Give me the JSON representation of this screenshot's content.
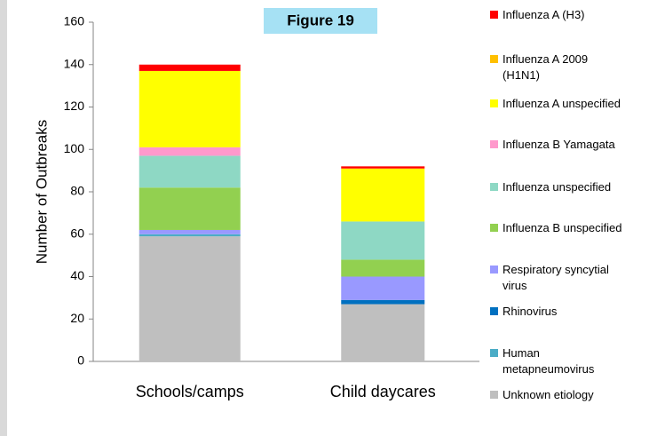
{
  "chart_data": {
    "type": "stacked_bar",
    "title": "Figure 19",
    "y_label": "Number of Outbreaks",
    "categories": [
      "Schools/camps",
      "Child daycares"
    ],
    "ylim": [
      0,
      160
    ],
    "yticks": [
      0,
      20,
      40,
      60,
      80,
      100,
      120,
      140,
      160
    ],
    "series": [
      {
        "name": "Unknown etiology",
        "color": "#bfbfbf",
        "values": [
          59,
          27
        ]
      },
      {
        "name": "Human metapneumovirus",
        "color": "#4bacc6",
        "values": [
          1,
          0
        ]
      },
      {
        "name": "Rhinovirus",
        "color": "#0070c0",
        "values": [
          0,
          2
        ]
      },
      {
        "name": "Respiratory syncytial virus",
        "color": "#9999ff",
        "values": [
          2,
          11
        ]
      },
      {
        "name": "Influenza B unspecified",
        "color": "#92d050",
        "values": [
          20,
          8
        ]
      },
      {
        "name": "Influenza unspecified",
        "color": "#8ed8c4",
        "values": [
          15,
          18
        ]
      },
      {
        "name": "Influenza B Yamagata",
        "color": "#ff99cc",
        "values": [
          4,
          0
        ]
      },
      {
        "name": "Influenza A unspecified",
        "color": "#ffff00",
        "values": [
          36,
          25
        ]
      },
      {
        "name": "Influenza A 2009 (H1N1)",
        "color": "#ffc000",
        "values": [
          0,
          0
        ]
      },
      {
        "name": "Influenza A (H3)",
        "color": "#ff0000",
        "values": [
          3,
          1
        ]
      }
    ]
  }
}
